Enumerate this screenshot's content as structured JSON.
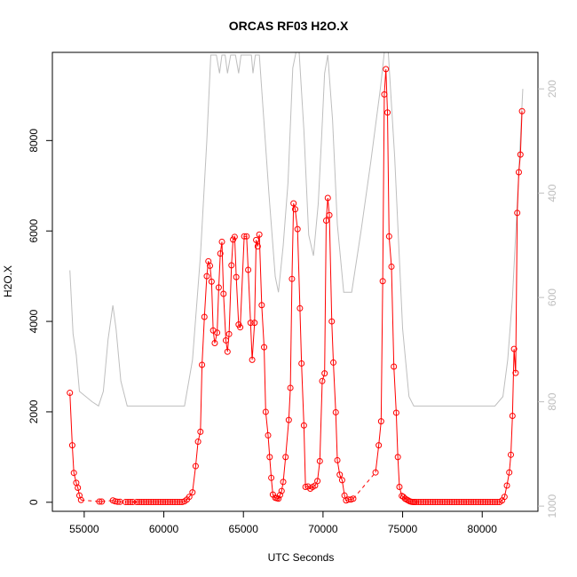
{
  "chart_data": {
    "type": "line",
    "title": "ORCAS RF03 H2O.X",
    "xlabel": "UTC Seconds",
    "ylabel": "H2O.X",
    "xlim": [
      53000,
      83500
    ],
    "ylim": [
      -200,
      9950
    ],
    "x_ticks": [
      55000,
      60000,
      65000,
      70000,
      75000,
      80000
    ],
    "y_ticks": [
      0,
      2000,
      4000,
      6000,
      8000
    ],
    "y2_ticks": [
      200,
      400,
      600,
      800,
      1000
    ],
    "y2lim": [
      1010,
      130
    ],
    "series": [
      {
        "style": "points-and-line",
        "color": "#ff0000",
        "points": [
          [
            54100,
            2420
          ],
          [
            54250,
            1260
          ],
          [
            54350,
            650
          ],
          [
            54500,
            430
          ],
          [
            54600,
            320
          ],
          [
            54700,
            150
          ],
          [
            54800,
            50
          ],
          [
            55950,
            15
          ],
          [
            56100,
            15
          ],
          [
            56800,
            40
          ],
          [
            56950,
            20
          ],
          [
            57100,
            10
          ],
          [
            57250,
            10
          ],
          [
            57600,
            5
          ],
          [
            57750,
            5
          ],
          [
            57900,
            5
          ],
          [
            58050,
            5
          ],
          [
            58300,
            5
          ],
          [
            58450,
            5
          ],
          [
            58600,
            5
          ],
          [
            58750,
            5
          ],
          [
            58900,
            5
          ],
          [
            59050,
            5
          ],
          [
            59200,
            5
          ],
          [
            59350,
            5
          ],
          [
            59500,
            5
          ],
          [
            59650,
            5
          ],
          [
            59800,
            5
          ],
          [
            59950,
            5
          ],
          [
            60100,
            5
          ],
          [
            60250,
            5
          ],
          [
            60400,
            5
          ],
          [
            60550,
            5
          ],
          [
            60700,
            5
          ],
          [
            60850,
            5
          ],
          [
            61000,
            5
          ],
          [
            61150,
            5
          ],
          [
            61300,
            20
          ],
          [
            61450,
            60
          ],
          [
            61600,
            120
          ],
          [
            61800,
            220
          ],
          [
            62000,
            800
          ],
          [
            62150,
            1340
          ],
          [
            62300,
            1560
          ],
          [
            62400,
            3040
          ],
          [
            62550,
            4100
          ],
          [
            62700,
            5000
          ],
          [
            62800,
            5330
          ],
          [
            62900,
            5230
          ],
          [
            63000,
            4880
          ],
          [
            63100,
            3800
          ],
          [
            63200,
            3520
          ],
          [
            63350,
            3750
          ],
          [
            63450,
            4750
          ],
          [
            63550,
            5500
          ],
          [
            63650,
            5760
          ],
          [
            63750,
            4610
          ],
          [
            63900,
            3580
          ],
          [
            64000,
            3330
          ],
          [
            64100,
            3720
          ],
          [
            64250,
            5240
          ],
          [
            64350,
            5810
          ],
          [
            64450,
            5870
          ],
          [
            64550,
            4980
          ],
          [
            64700,
            3930
          ],
          [
            64800,
            3870
          ],
          [
            65050,
            5880
          ],
          [
            65200,
            5880
          ],
          [
            65300,
            5140
          ],
          [
            65450,
            3970
          ],
          [
            65550,
            3150
          ],
          [
            65700,
            3970
          ],
          [
            65800,
            5800
          ],
          [
            65900,
            5660
          ],
          [
            66000,
            5920
          ],
          [
            66150,
            4360
          ],
          [
            66300,
            3430
          ],
          [
            66400,
            2000
          ],
          [
            66550,
            1480
          ],
          [
            66650,
            1000
          ],
          [
            66750,
            540
          ],
          [
            66850,
            170
          ],
          [
            67000,
            100
          ],
          [
            67100,
            90
          ],
          [
            67200,
            80
          ],
          [
            67300,
            160
          ],
          [
            67400,
            250
          ],
          [
            67500,
            450
          ],
          [
            67650,
            1000
          ],
          [
            67850,
            1820
          ],
          [
            67950,
            2530
          ],
          [
            68050,
            4940
          ],
          [
            68150,
            6610
          ],
          [
            68250,
            6480
          ],
          [
            68400,
            6040
          ],
          [
            68550,
            4290
          ],
          [
            68650,
            3070
          ],
          [
            68800,
            1700
          ],
          [
            68900,
            340
          ],
          [
            69050,
            350
          ],
          [
            69200,
            300
          ],
          [
            69350,
            340
          ],
          [
            69500,
            370
          ],
          [
            69650,
            470
          ],
          [
            69800,
            910
          ],
          [
            69950,
            2680
          ],
          [
            70100,
            2850
          ],
          [
            70200,
            6230
          ],
          [
            70300,
            6730
          ],
          [
            70400,
            6350
          ],
          [
            70550,
            4000
          ],
          [
            70650,
            3090
          ],
          [
            70800,
            1990
          ],
          [
            70900,
            930
          ],
          [
            71050,
            610
          ],
          [
            71200,
            490
          ],
          [
            71350,
            150
          ],
          [
            71450,
            40
          ],
          [
            71600,
            60
          ],
          [
            71750,
            60
          ],
          [
            71900,
            80
          ],
          [
            73300,
            660
          ],
          [
            73500,
            1260
          ],
          [
            73650,
            1790
          ],
          [
            73750,
            4890
          ],
          [
            73850,
            9020
          ],
          [
            73950,
            9580
          ],
          [
            74050,
            8620
          ],
          [
            74150,
            5880
          ],
          [
            74300,
            5210
          ],
          [
            74450,
            3000
          ],
          [
            74600,
            1980
          ],
          [
            74700,
            1000
          ],
          [
            74800,
            340
          ],
          [
            74950,
            140
          ],
          [
            75050,
            120
          ],
          [
            75150,
            80
          ],
          [
            75250,
            60
          ],
          [
            75350,
            40
          ],
          [
            75450,
            20
          ],
          [
            75550,
            10
          ],
          [
            75650,
            5
          ],
          [
            75750,
            5
          ],
          [
            75850,
            5
          ],
          [
            76000,
            5
          ],
          [
            76150,
            5
          ],
          [
            76300,
            5
          ],
          [
            76450,
            5
          ],
          [
            76600,
            5
          ],
          [
            76750,
            5
          ],
          [
            76900,
            5
          ],
          [
            77050,
            5
          ],
          [
            77200,
            5
          ],
          [
            77350,
            5
          ],
          [
            77500,
            5
          ],
          [
            77650,
            5
          ],
          [
            77800,
            5
          ],
          [
            77950,
            5
          ],
          [
            78100,
            5
          ],
          [
            78250,
            5
          ],
          [
            78400,
            5
          ],
          [
            78550,
            5
          ],
          [
            78700,
            5
          ],
          [
            78850,
            5
          ],
          [
            79000,
            5
          ],
          [
            79150,
            5
          ],
          [
            79300,
            5
          ],
          [
            79450,
            5
          ],
          [
            79600,
            5
          ],
          [
            79750,
            5
          ],
          [
            79900,
            5
          ],
          [
            80050,
            5
          ],
          [
            80200,
            5
          ],
          [
            80350,
            5
          ],
          [
            80500,
            5
          ],
          [
            80650,
            5
          ],
          [
            80800,
            5
          ],
          [
            80950,
            5
          ],
          [
            81100,
            5
          ],
          [
            81250,
            40
          ],
          [
            81400,
            120
          ],
          [
            81550,
            370
          ],
          [
            81700,
            660
          ],
          [
            81800,
            1050
          ],
          [
            81900,
            1910
          ],
          [
            82000,
            3390
          ],
          [
            82100,
            2860
          ],
          [
            82200,
            6400
          ],
          [
            82300,
            7300
          ],
          [
            82400,
            7690
          ],
          [
            82500,
            8650
          ]
        ],
        "gap_after": [
          [
            54800,
            55950
          ],
          [
            56100,
            56800
          ],
          [
            57250,
            57600
          ],
          [
            61450,
            61800
          ],
          [
            71900,
            73300
          ]
        ]
      },
      {
        "style": "line",
        "color": "#bebebe",
        "axis": "right",
        "points": [
          [
            54100,
            548
          ],
          [
            54300,
            670
          ],
          [
            54500,
            710
          ],
          [
            54700,
            780
          ],
          [
            55500,
            800
          ],
          [
            55900,
            808
          ],
          [
            56200,
            780
          ],
          [
            56500,
            680
          ],
          [
            56800,
            615
          ],
          [
            57000,
            660
          ],
          [
            57300,
            760
          ],
          [
            57700,
            808
          ],
          [
            58500,
            808
          ],
          [
            61300,
            808
          ],
          [
            61800,
            720
          ],
          [
            62300,
            520
          ],
          [
            62700,
            300
          ],
          [
            62950,
            135
          ],
          [
            63100,
            135
          ],
          [
            63300,
            135
          ],
          [
            63500,
            170
          ],
          [
            63650,
            135
          ],
          [
            63850,
            135
          ],
          [
            64000,
            170
          ],
          [
            64200,
            135
          ],
          [
            64500,
            135
          ],
          [
            64700,
            170
          ],
          [
            64850,
            135
          ],
          [
            65200,
            135
          ],
          [
            65500,
            135
          ],
          [
            65600,
            170
          ],
          [
            65750,
            135
          ],
          [
            66000,
            135
          ],
          [
            66600,
            400
          ],
          [
            67000,
            560
          ],
          [
            67200,
            590
          ],
          [
            67500,
            500
          ],
          [
            67800,
            380
          ],
          [
            68100,
            160
          ],
          [
            68300,
            130
          ],
          [
            68500,
            130
          ],
          [
            68800,
            280
          ],
          [
            69100,
            480
          ],
          [
            69400,
            520
          ],
          [
            69700,
            420
          ],
          [
            69900,
            300
          ],
          [
            70100,
            170
          ],
          [
            70300,
            135
          ],
          [
            70600,
            260
          ],
          [
            70900,
            460
          ],
          [
            71300,
            590
          ],
          [
            71800,
            590
          ],
          [
            72400,
            470
          ],
          [
            73000,
            340
          ],
          [
            73600,
            200
          ],
          [
            73850,
            130
          ],
          [
            74100,
            130
          ],
          [
            74500,
            330
          ],
          [
            75000,
            660
          ],
          [
            75400,
            790
          ],
          [
            75700,
            808
          ],
          [
            76200,
            808
          ],
          [
            80800,
            808
          ],
          [
            81300,
            790
          ],
          [
            81600,
            720
          ],
          [
            81900,
            600
          ],
          [
            82200,
            420
          ],
          [
            82550,
            200
          ]
        ]
      }
    ]
  }
}
